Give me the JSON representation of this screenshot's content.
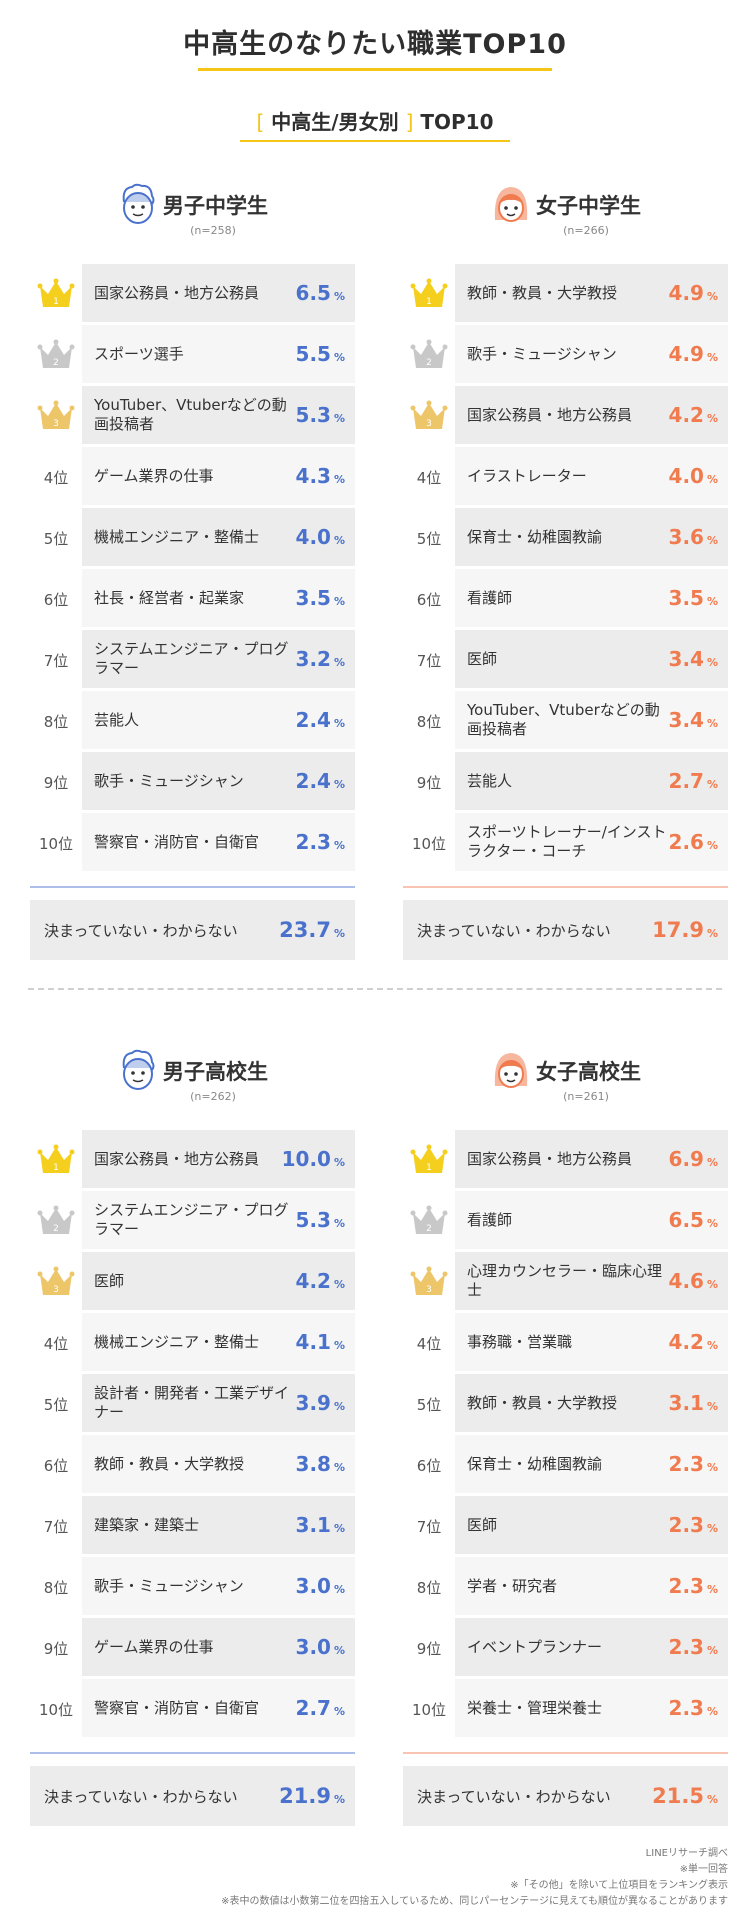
{
  "title": "中高生のなりたい職業TOP10",
  "subtitle": {
    "open_bracket": "[",
    "text": "中高生/男女別",
    "close_bracket": "]",
    "suffix": "TOP10"
  },
  "colors": {
    "accent": "#f5c518",
    "boys": "#4a72cc",
    "girls": "#f07b4f",
    "gold": "#f5cf1e",
    "silver": "#c8c8c8",
    "bronze": "#eec66a"
  },
  "rank_suffix": "位",
  "percent_sign": "%",
  "chart_data": [
    {
      "type": "table",
      "title": "男子中学生",
      "n": "(n=258)",
      "icon": "boy-face-icon",
      "color_key": "boys",
      "rows": [
        {
          "rank": 1,
          "label": "国家公務員・地方公務員",
          "value": "6.5"
        },
        {
          "rank": 2,
          "label": "スポーツ選手",
          "value": "5.5"
        },
        {
          "rank": 3,
          "label": "YouTuber、Vtuberなどの動画投稿者",
          "value": "5.3"
        },
        {
          "rank": 4,
          "label": "ゲーム業界の仕事",
          "value": "4.3"
        },
        {
          "rank": 5,
          "label": "機械エンジニア・整備士",
          "value": "4.0"
        },
        {
          "rank": 6,
          "label": "社長・経営者・起業家",
          "value": "3.5"
        },
        {
          "rank": 7,
          "label": "システムエンジニア・プログラマー",
          "value": "3.2"
        },
        {
          "rank": 8,
          "label": "芸能人",
          "value": "2.4"
        },
        {
          "rank": 9,
          "label": "歌手・ミュージシャン",
          "value": "2.4"
        },
        {
          "rank": 10,
          "label": "警察官・消防官・自衛官",
          "value": "2.3"
        }
      ],
      "undecided": {
        "label": "決まっていない・わからない",
        "value": "23.7"
      }
    },
    {
      "type": "table",
      "title": "女子中学生",
      "n": "(n=266)",
      "icon": "girl-face-icon",
      "color_key": "girls",
      "rows": [
        {
          "rank": 1,
          "label": "教師・教員・大学教授",
          "value": "4.9"
        },
        {
          "rank": 2,
          "label": "歌手・ミュージシャン",
          "value": "4.9"
        },
        {
          "rank": 3,
          "label": "国家公務員・地方公務員",
          "value": "4.2"
        },
        {
          "rank": 4,
          "label": "イラストレーター",
          "value": "4.0"
        },
        {
          "rank": 5,
          "label": "保育士・幼稚園教諭",
          "value": "3.6"
        },
        {
          "rank": 6,
          "label": "看護師",
          "value": "3.5"
        },
        {
          "rank": 7,
          "label": "医師",
          "value": "3.4"
        },
        {
          "rank": 8,
          "label": "YouTuber、Vtuberなどの動画投稿者",
          "value": "3.4"
        },
        {
          "rank": 9,
          "label": "芸能人",
          "value": "2.7"
        },
        {
          "rank": 10,
          "label": "スポーツトレーナー/インストラクター・コーチ",
          "value": "2.6"
        }
      ],
      "undecided": {
        "label": "決まっていない・わからない",
        "value": "17.9"
      }
    },
    {
      "type": "table",
      "title": "男子高校生",
      "n": "(n=262)",
      "icon": "boy-face-icon",
      "color_key": "boys",
      "rows": [
        {
          "rank": 1,
          "label": "国家公務員・地方公務員",
          "value": "10.0"
        },
        {
          "rank": 2,
          "label": "システムエンジニア・プログラマー",
          "value": "5.3"
        },
        {
          "rank": 3,
          "label": "医師",
          "value": "4.2"
        },
        {
          "rank": 4,
          "label": "機械エンジニア・整備士",
          "value": "4.1"
        },
        {
          "rank": 5,
          "label": "設計者・開発者・工業デザイナー",
          "value": "3.9"
        },
        {
          "rank": 6,
          "label": "教師・教員・大学教授",
          "value": "3.8"
        },
        {
          "rank": 7,
          "label": "建築家・建築士",
          "value": "3.1"
        },
        {
          "rank": 8,
          "label": "歌手・ミュージシャン",
          "value": "3.0"
        },
        {
          "rank": 9,
          "label": "ゲーム業界の仕事",
          "value": "3.0"
        },
        {
          "rank": 10,
          "label": "警察官・消防官・自衛官",
          "value": "2.7"
        }
      ],
      "undecided": {
        "label": "決まっていない・わからない",
        "value": "21.9"
      }
    },
    {
      "type": "table",
      "title": "女子高校生",
      "n": "(n=261)",
      "icon": "girl-face-icon",
      "color_key": "girls",
      "rows": [
        {
          "rank": 1,
          "label": "国家公務員・地方公務員",
          "value": "6.9"
        },
        {
          "rank": 2,
          "label": "看護師",
          "value": "6.5"
        },
        {
          "rank": 3,
          "label": "心理カウンセラー・臨床心理士",
          "value": "4.6"
        },
        {
          "rank": 4,
          "label": "事務職・営業職",
          "value": "4.2"
        },
        {
          "rank": 5,
          "label": "教師・教員・大学教授",
          "value": "3.1"
        },
        {
          "rank": 6,
          "label": "保育士・幼稚園教諭",
          "value": "2.3"
        },
        {
          "rank": 7,
          "label": "医師",
          "value": "2.3"
        },
        {
          "rank": 8,
          "label": "学者・研究者",
          "value": "2.3"
        },
        {
          "rank": 9,
          "label": "イベントプランナー",
          "value": "2.3"
        },
        {
          "rank": 10,
          "label": "栄養士・管理栄養士",
          "value": "2.3"
        }
      ],
      "undecided": {
        "label": "決まっていない・わからない",
        "value": "21.5"
      }
    }
  ],
  "notes": [
    "LINEリサーチ調べ",
    "※単一回答",
    "※「その他」を除いて上位項目をランキング表示",
    "※表中の数値は小数第二位を四捨五入しているため、同じパーセンテージに見えても順位が異なることがあります"
  ]
}
